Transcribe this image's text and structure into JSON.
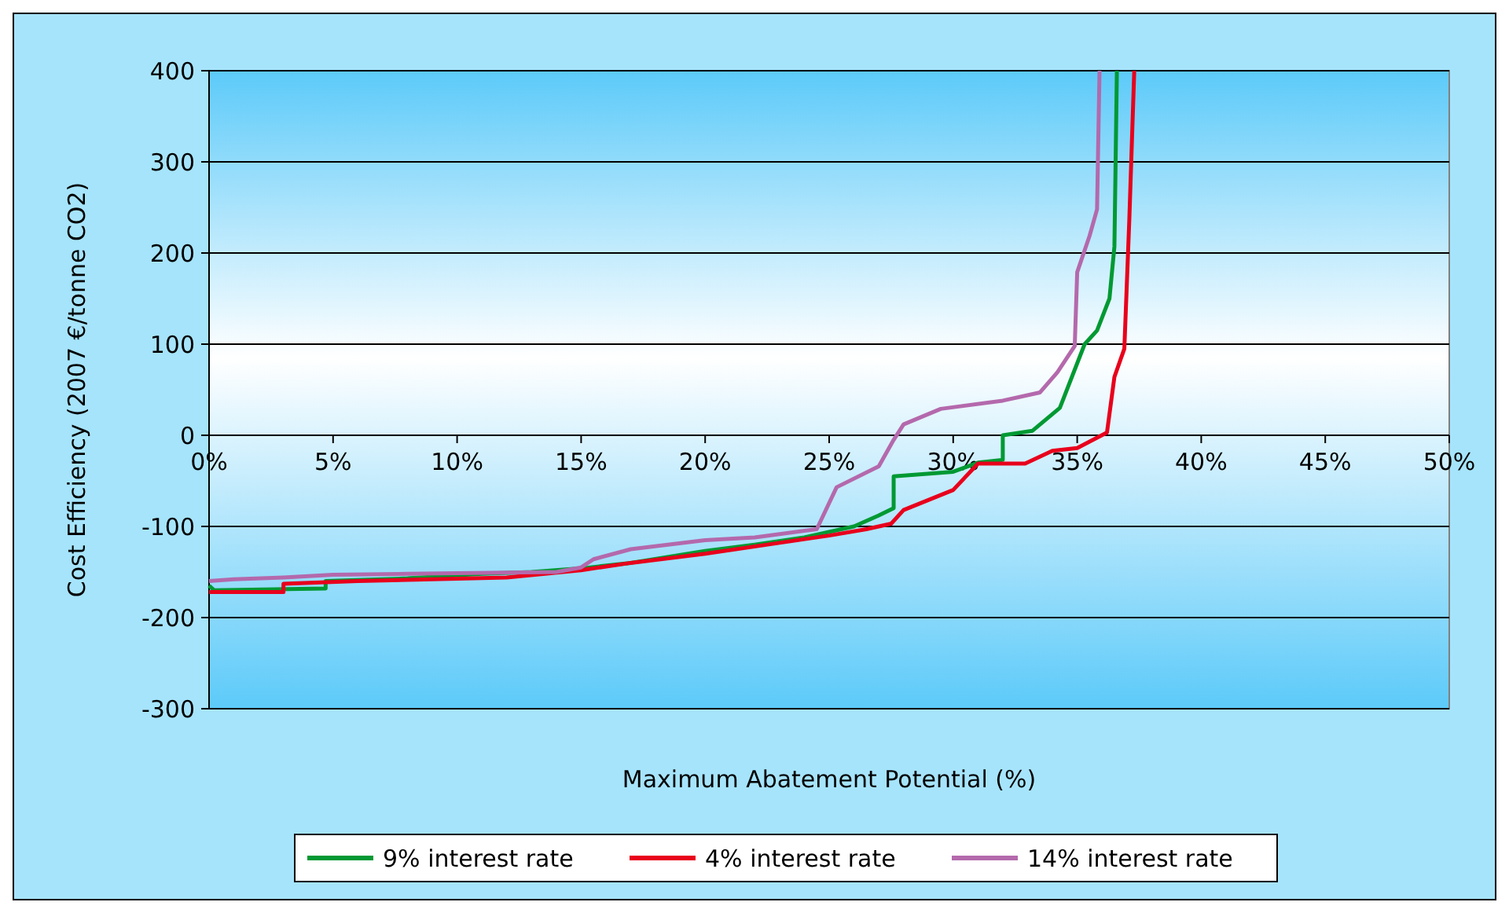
{
  "chart_data": {
    "type": "line",
    "xlabel": "Maximum Abatement Potential (%)",
    "ylabel": "Cost Efficiency (2007 €/tonne CO2)",
    "xlim": [
      0,
      50
    ],
    "xticks": [
      {
        "value": 0,
        "label": "0%"
      },
      {
        "value": 5,
        "label": "5%"
      },
      {
        "value": 10,
        "label": "10%"
      },
      {
        "value": 15,
        "label": "15%"
      },
      {
        "value": 20,
        "label": "20%"
      },
      {
        "value": 25,
        "label": "25%"
      },
      {
        "value": 30,
        "label": "30%"
      },
      {
        "value": 35,
        "label": "35%"
      },
      {
        "value": 40,
        "label": "40%"
      },
      {
        "value": 45,
        "label": "45%"
      },
      {
        "value": 50,
        "label": "50%"
      }
    ],
    "ylim": [
      -300,
      400
    ],
    "yticks": [
      -300,
      -200,
      -100,
      0,
      100,
      200,
      300,
      400
    ],
    "grid": "y",
    "legend": "bottom",
    "marker": "none",
    "line_style": "solid",
    "series": [
      {
        "name": "9% interest rate",
        "color": "#009933",
        "x": [
          0,
          0.2,
          4.7,
          4.7,
          8,
          11,
          13,
          15,
          17,
          20,
          22,
          24,
          26,
          27,
          27.6,
          27.6,
          30,
          31,
          32,
          32,
          33.2,
          34.3,
          35.3,
          35.8,
          36.3,
          36.5,
          36.6
        ],
        "values": [
          -165,
          -170,
          -168,
          -160,
          -157,
          -152,
          -150,
          -146,
          -140,
          -127,
          -120,
          -112,
          -100,
          -88,
          -80,
          -45,
          -40,
          -30,
          -27,
          0,
          5,
          30,
          100,
          115,
          150,
          207,
          400
        ]
      },
      {
        "name": "4% interest rate",
        "color": "#e8001c",
        "x": [
          0,
          3,
          3,
          6,
          12,
          15,
          17,
          20,
          23,
          25,
          26.5,
          27.5,
          28,
          30,
          31,
          32.9,
          34,
          35,
          36.2,
          36.5,
          36.9,
          37.1,
          37.3
        ],
        "values": [
          -172,
          -172,
          -163,
          -160,
          -156,
          -148,
          -140,
          -130,
          -118,
          -110,
          -103,
          -97,
          -82,
          -60,
          -31,
          -31,
          -17,
          -14,
          3,
          64,
          95,
          236,
          400
        ]
      },
      {
        "name": "14% interest rate",
        "color": "#b469ac",
        "x": [
          0,
          1,
          3,
          5,
          8,
          14,
          15,
          15.5,
          17,
          20,
          22,
          24.5,
          25.3,
          27,
          27.6,
          28,
          29.5,
          32,
          33.5,
          34.2,
          34.9,
          35,
          35.5,
          35.8,
          35.9
        ],
        "values": [
          -160,
          -158,
          -156,
          -153,
          -152,
          -150,
          -145,
          -136,
          -125,
          -115,
          -112,
          -103,
          -57,
          -34,
          -5,
          12,
          29,
          38,
          47,
          69,
          98,
          179,
          219,
          248,
          400
        ]
      }
    ]
  }
}
